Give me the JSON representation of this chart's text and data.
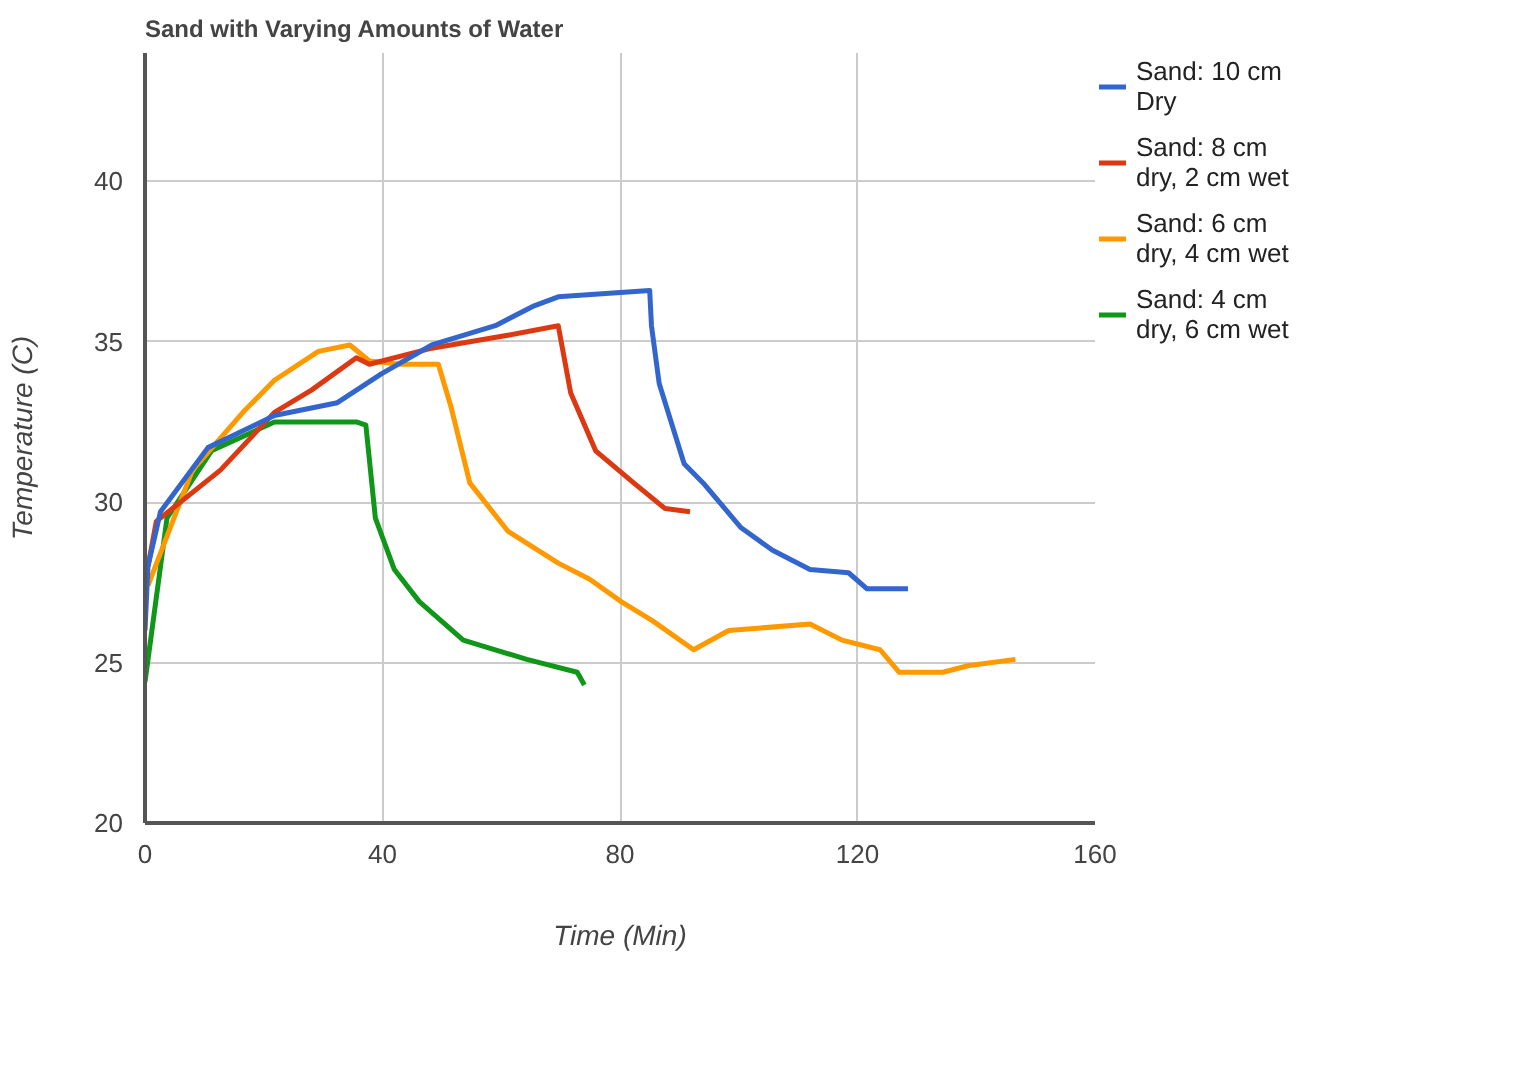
{
  "chart_data": {
    "type": "line",
    "title": "Sand with Varying Amounts of Water",
    "xlabel": "Time (Min)",
    "ylabel": "Temperature (C)",
    "xlim": [
      0,
      160
    ],
    "xticks": [
      0,
      40,
      80,
      120,
      160
    ],
    "ylim": [
      20,
      44
    ],
    "yticks": [
      20,
      25,
      30,
      35,
      40
    ],
    "grid": true,
    "legend": "right",
    "marker": "none",
    "line_style": "solid",
    "series": [
      {
        "name": "Sand: 10 cm Dry",
        "color": "#3366cc",
        "x": [
          0,
          0.5,
          2.6,
          10.6,
          21.8,
          32.4,
          39.8,
          48.3,
          59,
          65.3,
          69.6,
          85,
          85.3,
          86.6,
          90.8,
          94,
          100.4,
          105.7,
          112,
          118.5,
          121.6,
          128.5
        ],
        "values": [
          26,
          28,
          29.7,
          31.7,
          32.7,
          33.1,
          34.0,
          34.9,
          35.5,
          36.1,
          36.4,
          36.6,
          35.5,
          33.7,
          31.2,
          30.6,
          29.2,
          28.5,
          27.9,
          27.8,
          27.3,
          27.3
        ]
      },
      {
        "name": "Sand: 8 cm dry, 2 cm wet",
        "color": "#dc3912",
        "x": [
          0.5,
          1.9,
          12.7,
          21.8,
          28.1,
          35.6,
          37.8,
          48.3,
          61.1,
          69.6,
          71.7,
          75.9,
          82.3,
          87.6,
          91.8
        ],
        "values": [
          28,
          29.4,
          31.0,
          32.8,
          33.5,
          34.5,
          34.3,
          34.8,
          35.2,
          35.5,
          33.4,
          31.6,
          30.6,
          29.8,
          29.7
        ]
      },
      {
        "name": "Sand: 6 cm dry, 4 cm wet",
        "color": "#ff9900",
        "x": [
          0.5,
          8,
          16.5,
          21.8,
          29.2,
          34.5,
          37.8,
          43,
          49.4,
          51.5,
          54.7,
          61.1,
          69.6,
          74.9,
          80.2,
          85.5,
          92.4,
          98.3,
          112,
          117.4,
          123.8,
          127,
          134.4,
          138.6,
          146.6
        ],
        "values": [
          27.4,
          31.0,
          32.8,
          33.8,
          34.7,
          34.9,
          34.4,
          34.3,
          34.3,
          33.0,
          30.6,
          29.1,
          28.1,
          27.6,
          26.9,
          26.3,
          25.4,
          26.0,
          26.2,
          25.7,
          25.4,
          24.7,
          24.7,
          24.9,
          25.1
        ]
      },
      {
        "name": "Sand: 4 cm dry, 6 cm wet",
        "color": "#109618",
        "x": [
          0,
          3.7,
          11.2,
          21.8,
          35.6,
          37.2,
          38.8,
          42,
          46.2,
          53.6,
          64.3,
          72.8,
          74
        ],
        "values": [
          24.4,
          29.5,
          31.6,
          32.5,
          32.5,
          32.4,
          29.5,
          27.9,
          26.9,
          25.7,
          25.1,
          24.7,
          24.3
        ]
      }
    ]
  }
}
